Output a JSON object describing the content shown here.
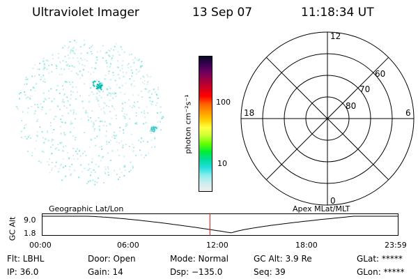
{
  "header": {
    "title": "Ultraviolet Imager",
    "date": "13 Sep 07",
    "time": "11:18:34 UT"
  },
  "colorbar": {
    "unit_label": "photon cm⁻²s⁻¹",
    "ticks": [
      {
        "label": "100",
        "value": 100
      },
      {
        "label": "10",
        "value": 10
      }
    ],
    "colors": [
      "#0a0a2a",
      "#3a0050",
      "#700060",
      "#a00040",
      "#d00020",
      "#ff0000",
      "#ff6000",
      "#ff9900",
      "#ffcc00",
      "#ffff40",
      "#ccff33",
      "#66ff00",
      "#00ee33",
      "#00dd99",
      "#22dddd",
      "#88eeee",
      "#cceeee",
      "#eeeeee"
    ]
  },
  "polar_plot": {
    "mlt_labels": {
      "top": "12",
      "left": "18",
      "right": "6",
      "bottom": "0"
    },
    "lat_labels": [
      "60",
      "70",
      "80"
    ]
  },
  "timeline": {
    "axis_label": "GC Alt",
    "left_caption": "Geographic Lat/Lon",
    "right_caption": "Apex  MLat/MLT",
    "ymax_label": "9.0",
    "ymin_label": "1.8",
    "x_ticks": [
      "00:00",
      "06:00",
      "12:00",
      "18:00",
      "23:59"
    ],
    "current_time_hours": 11.31,
    "curve_color": "#000000",
    "marker_color": "#ff0000"
  },
  "info": {
    "row1": [
      "Flt: LBHL",
      "Door: Open",
      "Mode: Normal",
      "GC Alt: 3.9 Re",
      "GLat: *****"
    ],
    "row2": [
      "IP: 36.0",
      "Gain: 14",
      "Dsp: −135.0",
      "Seq: 39",
      "GLon: *****"
    ]
  }
}
